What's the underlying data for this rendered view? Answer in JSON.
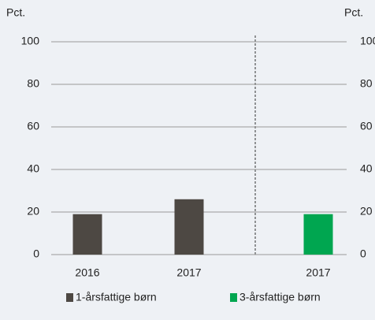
{
  "chart_data": {
    "type": "bar",
    "ylabel": "Pct.",
    "y2label": "Pct.",
    "categories": [
      "2016",
      "2017",
      "2017"
    ],
    "series": [
      {
        "name": "1-årsfattige børn",
        "color": "#4d4843",
        "values": [
          19,
          26,
          null
        ]
      },
      {
        "name": "3-årsfattige børn",
        "color": "#00a650",
        "values": [
          null,
          null,
          19
        ]
      }
    ],
    "ylim": [
      0,
      100
    ],
    "yticks": [
      0,
      20,
      40,
      60,
      80,
      100
    ],
    "y2lim": [
      0,
      100
    ],
    "y2ticks": [
      0,
      20,
      40,
      60,
      80,
      100
    ],
    "grid": true
  }
}
